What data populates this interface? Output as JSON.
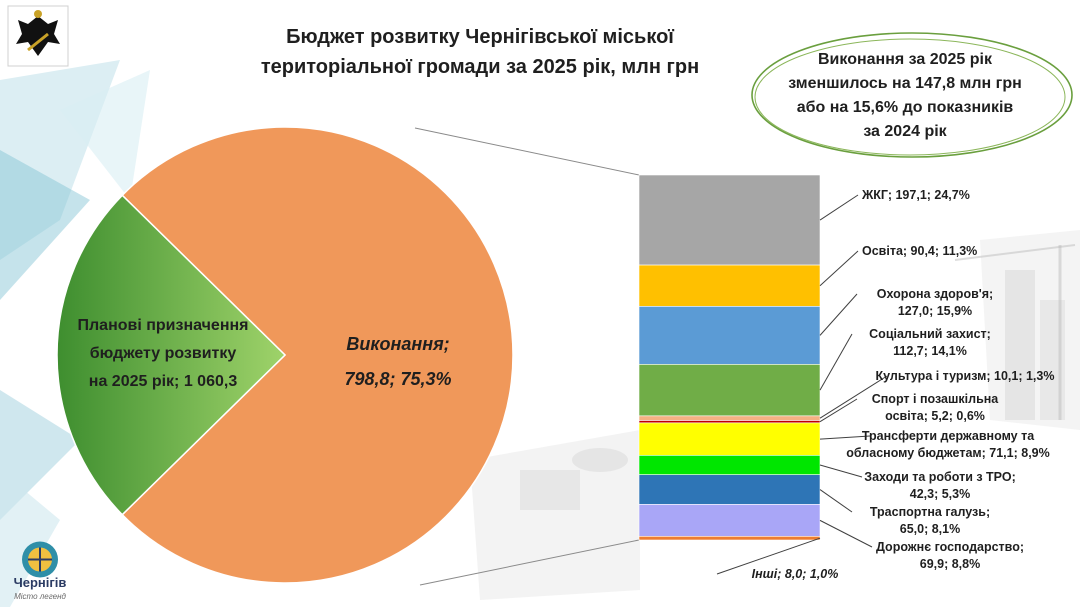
{
  "header": {
    "title_line1": "Бюджет розвитку Чернігівської міської",
    "title_line2": "територіальної громади за 2025 рік, млн грн"
  },
  "note": {
    "line1": "Виконання за 2025 рік",
    "line2": "зменшилось на 147,8 млн грн",
    "line3": "або на 15,6% до показників",
    "line4": "за 2024 рік"
  },
  "logo": {
    "city_name": "Чернігів",
    "slogan": "Місто легенд"
  },
  "colors": {
    "executed": "#f0985a",
    "planned_light": "#9fd36a",
    "planned_dark": "#3e8e2f",
    "accent_blue": "#2b3b63"
  },
  "chart_data": [
    {
      "type": "pie",
      "slices": [
        {
          "label_line1": "Виконання;",
          "label_line2": "798,8; 75,3%",
          "value": 798.8,
          "percent": 75.3,
          "color": "#f0985a"
        },
        {
          "label_line1": "Планові призначення",
          "label_line2": "бюджету розвитку",
          "label_line3": "на 2025 рік; 1 060,3",
          "value": 1060.3,
          "percent": 24.7,
          "color": "#7cc04e"
        }
      ]
    },
    {
      "type": "bar",
      "stacked": true,
      "total": 798.8,
      "series": [
        {
          "lines": [
            "ЖКГ;  197,1; 24,7%"
          ],
          "value": 197.1,
          "percent": 24.7,
          "color": "#a6a6a6"
        },
        {
          "lines": [
            "Освіта;  90,4; 11,3%"
          ],
          "value": 90.4,
          "percent": 11.3,
          "color": "#ffc000"
        },
        {
          "lines": [
            "Охорона здоров'я;",
            "127,0; 15,9%"
          ],
          "value": 127.0,
          "percent": 15.9,
          "color": "#5b9bd5"
        },
        {
          "lines": [
            "Соціальний захист;",
            "112,7; 14,1%"
          ],
          "value": 112.7,
          "percent": 14.1,
          "color": "#70ad47"
        },
        {
          "lines": [
            "Культура і туризм; 10,1; 1,3%"
          ],
          "value": 10.1,
          "percent": 1.3,
          "color": "#f4b183"
        },
        {
          "lines": [
            "Спорт і позашкільна",
            "освіта;  5,2; 0,6%"
          ],
          "value": 5.2,
          "percent": 0.6,
          "color": "#c00000"
        },
        {
          "lines": [
            "Трансферти державному та",
            "обласному бюджетам;  71,1; 8,9%"
          ],
          "value": 71.1,
          "percent": 8.9,
          "color": "#ffff00"
        },
        {
          "lines": [
            "Заходи та роботи з ТРО;",
            "42,3; 5,3%"
          ],
          "value": 42.3,
          "percent": 5.3,
          "color": "#00e600"
        },
        {
          "lines": [
            "Траспортна галузь;",
            "65,0; 8,1%"
          ],
          "value": 65.0,
          "percent": 8.1,
          "color": "#2e75b6"
        },
        {
          "lines": [
            "Дорожнє господарство;",
            "69,9; 8,8%"
          ],
          "value": 69.9,
          "percent": 8.8,
          "color": "#a9a6f7"
        },
        {
          "lines": [
            "Інші;  8,0; 1,0%"
          ],
          "value": 8.0,
          "percent": 1.0,
          "color": "#ed7d31",
          "italic": true
        }
      ]
    }
  ]
}
